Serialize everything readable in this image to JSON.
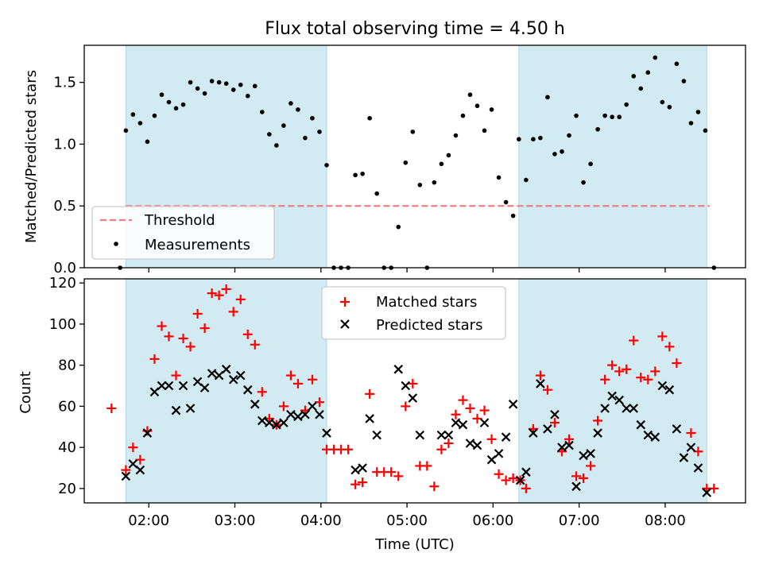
{
  "title": "Flux total observing time = 4.50 h",
  "colors": {
    "shade": "#add8e6",
    "threshold": "#f08080",
    "matched": "#ff0000",
    "predicted": "#000000",
    "measurements": "#000000"
  },
  "shaded_intervals": [
    [
      "01:44",
      "04:04"
    ],
    [
      "06:18",
      "08:29"
    ]
  ],
  "chart_data": [
    {
      "type": "scatter",
      "ylabel": "Matched/Predicted stars",
      "xlabel": "",
      "xlim": [
        "01:15",
        "08:56"
      ],
      "ylim": [
        0,
        1.8
      ],
      "yticks": [
        "0.0",
        "0.5",
        "1.0",
        "1.5"
      ],
      "grid": false,
      "legend": "lower-left",
      "threshold": {
        "name": "Threshold",
        "value": 0.5,
        "range": [
          "01:44",
          "08:31"
        ]
      },
      "series": [
        {
          "name": "Measurements",
          "marker": "dot",
          "points": [
            [
              "01:40",
              0.0
            ],
            [
              "01:44",
              1.11
            ],
            [
              "01:49",
              1.24
            ],
            [
              "01:54",
              1.17
            ],
            [
              "01:59",
              1.02
            ],
            [
              "02:04",
              1.23
            ],
            [
              "02:09",
              1.4
            ],
            [
              "02:14",
              1.34
            ],
            [
              "02:19",
              1.29
            ],
            [
              "02:24",
              1.32
            ],
            [
              "02:29",
              1.5
            ],
            [
              "02:34",
              1.45
            ],
            [
              "02:39",
              1.41
            ],
            [
              "02:44",
              1.51
            ],
            [
              "02:49",
              1.5
            ],
            [
              "02:54",
              1.49
            ],
            [
              "02:59",
              1.44
            ],
            [
              "03:04",
              1.48
            ],
            [
              "03:09",
              1.39
            ],
            [
              "03:14",
              1.47
            ],
            [
              "03:19",
              1.26
            ],
            [
              "03:24",
              1.08
            ],
            [
              "03:29",
              0.99
            ],
            [
              "03:34",
              1.15
            ],
            [
              "03:39",
              1.33
            ],
            [
              "03:44",
              1.28
            ],
            [
              "03:49",
              1.05
            ],
            [
              "03:54",
              1.21
            ],
            [
              "03:59",
              1.1
            ],
            [
              "04:04",
              0.83
            ],
            [
              "04:09",
              0.0
            ],
            [
              "04:14",
              0.0
            ],
            [
              "04:19",
              0.0
            ],
            [
              "04:24",
              0.75
            ],
            [
              "04:29",
              0.76
            ],
            [
              "04:34",
              1.21
            ],
            [
              "04:39",
              0.6
            ],
            [
              "04:44",
              0.0
            ],
            [
              "04:49",
              0.0
            ],
            [
              "04:54",
              0.33
            ],
            [
              "04:59",
              0.85
            ],
            [
              "05:04",
              1.1
            ],
            [
              "05:09",
              0.67
            ],
            [
              "05:14",
              0.0
            ],
            [
              "05:19",
              0.69
            ],
            [
              "05:24",
              0.84
            ],
            [
              "05:29",
              0.91
            ],
            [
              "05:34",
              1.07
            ],
            [
              "05:39",
              1.23
            ],
            [
              "05:44",
              1.4
            ],
            [
              "05:49",
              1.31
            ],
            [
              "05:54",
              1.11
            ],
            [
              "05:59",
              1.28
            ],
            [
              "06:04",
              0.73
            ],
            [
              "06:09",
              0.53
            ],
            [
              "06:14",
              0.42
            ],
            [
              "06:18",
              1.04
            ],
            [
              "06:23",
              0.71
            ],
            [
              "06:28",
              1.04
            ],
            [
              "06:33",
              1.05
            ],
            [
              "06:38",
              1.38
            ],
            [
              "06:43",
              0.92
            ],
            [
              "06:48",
              0.94
            ],
            [
              "06:53",
              1.07
            ],
            [
              "06:58",
              1.23
            ],
            [
              "07:03",
              0.69
            ],
            [
              "07:08",
              0.84
            ],
            [
              "07:13",
              1.12
            ],
            [
              "07:18",
              1.23
            ],
            [
              "07:23",
              1.22
            ],
            [
              "07:28",
              1.22
            ],
            [
              "07:33",
              1.32
            ],
            [
              "07:38",
              1.55
            ],
            [
              "07:43",
              1.45
            ],
            [
              "07:48",
              1.58
            ],
            [
              "07:53",
              1.7
            ],
            [
              "07:58",
              1.34
            ],
            [
              "08:03",
              1.3
            ],
            [
              "08:08",
              1.65
            ],
            [
              "08:13",
              1.51
            ],
            [
              "08:18",
              1.17
            ],
            [
              "08:23",
              1.26
            ],
            [
              "08:28",
              1.11
            ],
            [
              "08:34",
              0.0
            ]
          ]
        }
      ]
    },
    {
      "type": "scatter",
      "ylabel": "Count",
      "xlabel": "Time (UTC)",
      "xlim": [
        "01:15",
        "08:56"
      ],
      "ylim": [
        13,
        122
      ],
      "yticks": [
        "20",
        "40",
        "60",
        "80",
        "100",
        "120"
      ],
      "xticks": [
        "02:00",
        "03:00",
        "04:00",
        "05:00",
        "06:00",
        "07:00",
        "08:00"
      ],
      "grid": false,
      "legend": "top-center",
      "series": [
        {
          "name": "Matched stars",
          "marker": "plus",
          "points": [
            [
              "01:34",
              59
            ],
            [
              "01:44",
              29
            ],
            [
              "01:49",
              40
            ],
            [
              "01:54",
              34
            ],
            [
              "01:59",
              48
            ],
            [
              "02:04",
              83
            ],
            [
              "02:09",
              99
            ],
            [
              "02:14",
              94
            ],
            [
              "02:19",
              75
            ],
            [
              "02:24",
              93
            ],
            [
              "02:29",
              89
            ],
            [
              "02:34",
              105
            ],
            [
              "02:39",
              98
            ],
            [
              "02:44",
              115
            ],
            [
              "02:49",
              114
            ],
            [
              "02:54",
              117
            ],
            [
              "02:59",
              106
            ],
            [
              "03:04",
              112
            ],
            [
              "03:09",
              95
            ],
            [
              "03:14",
              90
            ],
            [
              "03:19",
              67
            ],
            [
              "03:24",
              54
            ],
            [
              "03:29",
              51
            ],
            [
              "03:34",
              60
            ],
            [
              "03:39",
              75
            ],
            [
              "03:44",
              71
            ],
            [
              "03:49",
              58
            ],
            [
              "03:54",
              73
            ],
            [
              "03:59",
              62
            ],
            [
              "04:04",
              39
            ],
            [
              "04:09",
              39
            ],
            [
              "04:14",
              39
            ],
            [
              "04:19",
              39
            ],
            [
              "04:24",
              22
            ],
            [
              "04:29",
              23
            ],
            [
              "04:34",
              66
            ],
            [
              "04:39",
              28
            ],
            [
              "04:44",
              28
            ],
            [
              "04:49",
              28
            ],
            [
              "04:54",
              26
            ],
            [
              "04:59",
              60
            ],
            [
              "05:04",
              71
            ],
            [
              "05:09",
              31
            ],
            [
              "05:14",
              31
            ],
            [
              "05:19",
              21
            ],
            [
              "05:24",
              39
            ],
            [
              "05:29",
              42
            ],
            [
              "05:34",
              56
            ],
            [
              "05:39",
              63
            ],
            [
              "05:44",
              59
            ],
            [
              "05:49",
              54
            ],
            [
              "05:54",
              58
            ],
            [
              "05:59",
              44
            ],
            [
              "06:04",
              27
            ],
            [
              "06:09",
              24
            ],
            [
              "06:14",
              25
            ],
            [
              "06:19",
              24
            ],
            [
              "06:23",
              20
            ],
            [
              "06:28",
              49
            ],
            [
              "06:33",
              75
            ],
            [
              "06:38",
              68
            ],
            [
              "06:43",
              52
            ],
            [
              "06:48",
              38
            ],
            [
              "06:53",
              44
            ],
            [
              "06:58",
              26
            ],
            [
              "07:03",
              25
            ],
            [
              "07:08",
              31
            ],
            [
              "07:13",
              53
            ],
            [
              "07:18",
              73
            ],
            [
              "07:23",
              80
            ],
            [
              "07:28",
              77
            ],
            [
              "07:33",
              78
            ],
            [
              "07:38",
              92
            ],
            [
              "07:43",
              74
            ],
            [
              "07:48",
              73
            ],
            [
              "07:53",
              77
            ],
            [
              "07:58",
              94
            ],
            [
              "08:03",
              89
            ],
            [
              "08:08",
              81
            ],
            [
              "08:18",
              47
            ],
            [
              "08:23",
              38
            ],
            [
              "08:29",
              20
            ],
            [
              "08:34",
              20
            ]
          ]
        },
        {
          "name": "Predicted stars",
          "marker": "x",
          "points": [
            [
              "01:44",
              26
            ],
            [
              "01:49",
              32
            ],
            [
              "01:54",
              29
            ],
            [
              "01:59",
              47
            ],
            [
              "02:04",
              67
            ],
            [
              "02:09",
              70
            ],
            [
              "02:14",
              70
            ],
            [
              "02:19",
              58
            ],
            [
              "02:24",
              70
            ],
            [
              "02:29",
              59
            ],
            [
              "02:34",
              72
            ],
            [
              "02:39",
              69
            ],
            [
              "02:44",
              76
            ],
            [
              "02:49",
              75
            ],
            [
              "02:54",
              78
            ],
            [
              "02:59",
              73
            ],
            [
              "03:04",
              75
            ],
            [
              "03:09",
              68
            ],
            [
              "03:14",
              61
            ],
            [
              "03:19",
              53
            ],
            [
              "03:24",
              52
            ],
            [
              "03:29",
              51
            ],
            [
              "03:34",
              52
            ],
            [
              "03:39",
              56
            ],
            [
              "03:44",
              55
            ],
            [
              "03:49",
              56
            ],
            [
              "03:54",
              60
            ],
            [
              "03:59",
              56
            ],
            [
              "04:04",
              47
            ],
            [
              "04:24",
              29
            ],
            [
              "04:29",
              30
            ],
            [
              "04:34",
              54
            ],
            [
              "04:39",
              46
            ],
            [
              "04:54",
              78
            ],
            [
              "04:59",
              70
            ],
            [
              "05:04",
              64
            ],
            [
              "05:09",
              46
            ],
            [
              "05:24",
              46
            ],
            [
              "05:29",
              46
            ],
            [
              "05:34",
              52
            ],
            [
              "05:39",
              51
            ],
            [
              "05:44",
              42
            ],
            [
              "05:49",
              41
            ],
            [
              "05:54",
              52
            ],
            [
              "05:59",
              34
            ],
            [
              "06:04",
              37
            ],
            [
              "06:09",
              45
            ],
            [
              "06:14",
              61
            ],
            [
              "06:19",
              24
            ],
            [
              "06:23",
              28
            ],
            [
              "06:28",
              47
            ],
            [
              "06:33",
              71
            ],
            [
              "06:38",
              49
            ],
            [
              "06:43",
              56
            ],
            [
              "06:48",
              40
            ],
            [
              "06:53",
              41
            ],
            [
              "06:58",
              21
            ],
            [
              "07:03",
              36
            ],
            [
              "07:08",
              37
            ],
            [
              "07:13",
              47
            ],
            [
              "07:18",
              59
            ],
            [
              "07:23",
              65
            ],
            [
              "07:28",
              63
            ],
            [
              "07:33",
              59
            ],
            [
              "07:38",
              59
            ],
            [
              "07:43",
              51
            ],
            [
              "07:48",
              46
            ],
            [
              "07:53",
              45
            ],
            [
              "07:58",
              70
            ],
            [
              "08:03",
              68
            ],
            [
              "08:08",
              49
            ],
            [
              "08:13",
              35
            ],
            [
              "08:18",
              40
            ],
            [
              "08:23",
              30
            ],
            [
              "08:29",
              18
            ]
          ]
        }
      ]
    }
  ]
}
